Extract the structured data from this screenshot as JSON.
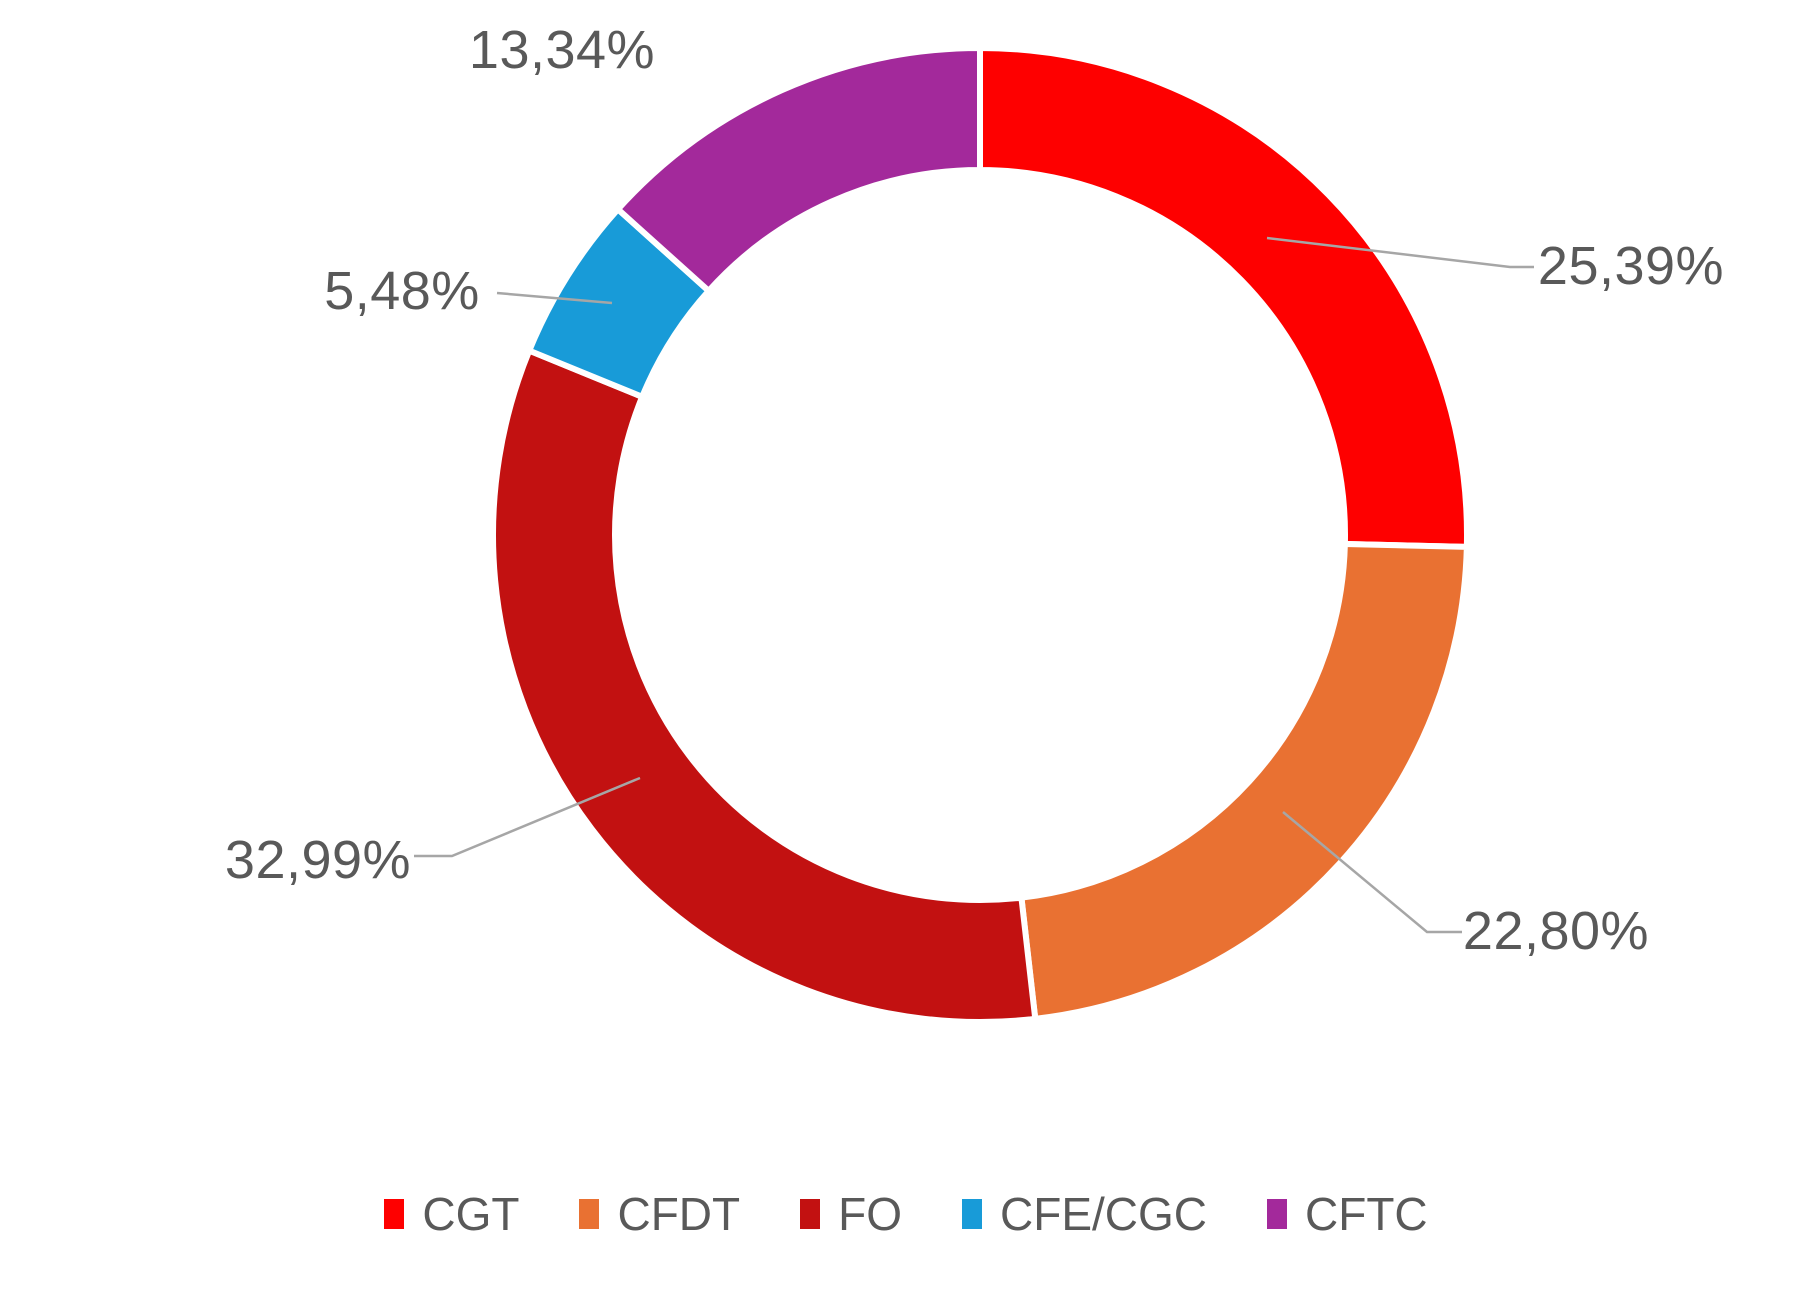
{
  "chart_data": {
    "type": "pie",
    "subtype": "donut",
    "title": "",
    "categories": [
      "CGT",
      "CFDT",
      "FO",
      "CFE/CGC",
      "CFTC"
    ],
    "values": [
      25.39,
      22.8,
      32.99,
      5.48,
      13.34
    ],
    "labels": [
      "25,39%",
      "22,80%",
      "32,99%",
      "5,48%",
      "13,34%"
    ],
    "colors": [
      "#FE0000",
      "#E97132",
      "#C21111",
      "#189BD8",
      "#A3299B"
    ],
    "start_angle_deg": 0,
    "direction": "clockwise",
    "inner_radius_ratio": 0.75,
    "slice_gap_color": "#FFFFFF",
    "label_color": "#595959",
    "leader_line_color": "#A6A6A6",
    "legend_position": "bottom"
  },
  "legend": {
    "items": [
      {
        "label": "CGT"
      },
      {
        "label": "CFDT"
      },
      {
        "label": "FO"
      },
      {
        "label": "CFE/CGC"
      },
      {
        "label": "CFTC"
      }
    ]
  }
}
